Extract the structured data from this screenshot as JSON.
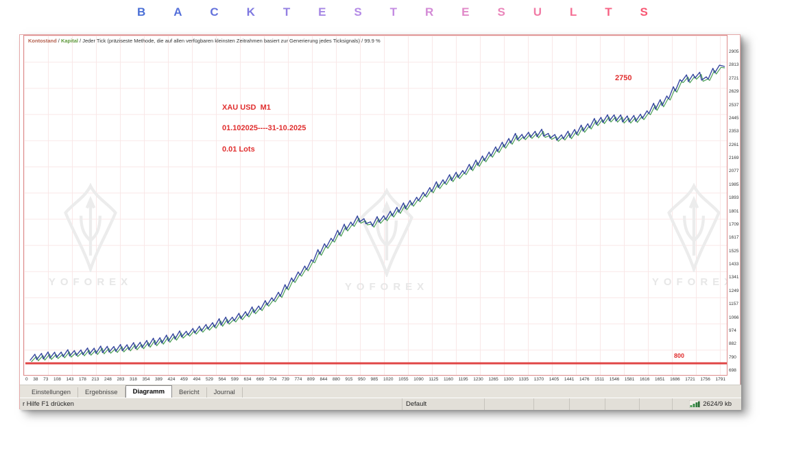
{
  "title": {
    "text": "BACKTEST RESULTS",
    "letters": [
      {
        "ch": "B",
        "color": "#4a6fd6"
      },
      {
        "ch": "A",
        "color": "#5570da"
      },
      {
        "ch": "C",
        "color": "#6472dc"
      },
      {
        "ch": "K",
        "color": "#7e78e0"
      },
      {
        "ch": "T",
        "color": "#9480e2"
      },
      {
        "ch": "E",
        "color": "#a586e4"
      },
      {
        "ch": "S",
        "color": "#b48ae6"
      },
      {
        "ch": "T",
        "color": "#c48ce2"
      },
      {
        "ch": "R",
        "color": "#d38ad6"
      },
      {
        "ch": "E",
        "color": "#e088c8"
      },
      {
        "ch": "S",
        "color": "#ea85ba"
      },
      {
        "ch": "U",
        "color": "#f17ca6"
      },
      {
        "ch": "L",
        "color": "#f57095"
      },
      {
        "ch": "T",
        "color": "#f76384"
      },
      {
        "ch": "S",
        "color": "#f85672"
      }
    ]
  },
  "window": {
    "legend": {
      "balance_label": "Kontostand",
      "equity_label": "Kapital",
      "separator": " / ",
      "description": "Jeder Tick (präziseste Methode, die auf allen verfügbaren kleinsten Zeitrahmen basiert zur Generierung jedes Ticksignals)",
      "quality": "99.9 %"
    },
    "annotations": {
      "symbol": "XAU USD  M1",
      "period": "01.102025----31-10.2025",
      "lots": "0.01 Lots",
      "high_label": "2750",
      "low_label": "800",
      "color": "#e02e2e"
    },
    "watermark": {
      "text": "YOFOREX"
    },
    "tabs": [
      {
        "label": "Einstellungen",
        "active": false
      },
      {
        "label": "Ergebnisse",
        "active": false
      },
      {
        "label": "Diagramm",
        "active": true
      },
      {
        "label": "Bericht",
        "active": false
      },
      {
        "label": "Journal",
        "active": false
      }
    ],
    "statusbar": {
      "help": "r Hilfe F1 drücken",
      "profile": "Default",
      "memory": "2624/9 kb"
    }
  },
  "chart_data": {
    "type": "line",
    "title": "Backtest equity curve XAU USD M1 01.10.2025-31.10.2025 0.01 Lots",
    "xlabel": "",
    "ylabel": "",
    "grid": true,
    "y_ticks": [
      2905,
      2813,
      2721,
      2629,
      2537,
      2445,
      2353,
      2261,
      2169,
      2077,
      1985,
      1893,
      1801,
      1709,
      1617,
      1525,
      1433,
      1341,
      1249,
      1157,
      1066,
      974,
      882,
      790,
      698
    ],
    "x_ticks": [
      0,
      38,
      73,
      108,
      143,
      178,
      213,
      248,
      283,
      318,
      354,
      389,
      424,
      459,
      494,
      529,
      564,
      599,
      634,
      669,
      704,
      739,
      774,
      809,
      844,
      880,
      915,
      950,
      985,
      1020,
      1055,
      1090,
      1125,
      1160,
      1195,
      1230,
      1265,
      1300,
      1335,
      1370,
      1405,
      1441,
      1476,
      1511,
      1546,
      1581,
      1616,
      1651,
      1686,
      1721,
      1756,
      1791
    ],
    "ylim": [
      698,
      2905
    ],
    "series": [
      {
        "name": "Kontostand",
        "color": "#36479f",
        "anchors": [
          [
            9,
            472
          ],
          [
            30,
            470
          ],
          [
            55,
            467
          ],
          [
            85,
            464
          ],
          [
            115,
            461
          ],
          [
            145,
            458
          ],
          [
            175,
            453
          ],
          [
            205,
            446
          ],
          [
            230,
            438
          ],
          [
            260,
            429
          ],
          [
            290,
            420
          ],
          [
            320,
            410
          ],
          [
            345,
            398
          ],
          [
            360,
            388
          ],
          [
            375,
            378
          ],
          [
            390,
            360
          ],
          [
            400,
            350
          ],
          [
            412,
            340
          ],
          [
            427,
            322
          ],
          [
            442,
            306
          ],
          [
            457,
            292
          ],
          [
            472,
            280
          ],
          [
            487,
            270
          ],
          [
            497,
            272
          ],
          [
            507,
            277
          ],
          [
            517,
            271
          ],
          [
            527,
            267
          ],
          [
            547,
            256
          ],
          [
            567,
            245
          ],
          [
            587,
            231
          ],
          [
            612,
            215
          ],
          [
            632,
            206
          ],
          [
            657,
            191
          ],
          [
            677,
            177
          ],
          [
            697,
            163
          ],
          [
            717,
            151
          ],
          [
            737,
            147
          ],
          [
            757,
            145
          ],
          [
            777,
            151
          ],
          [
            797,
            147
          ],
          [
            817,
            137
          ],
          [
            837,
            127
          ],
          [
            857,
            122
          ],
          [
            877,
            125
          ],
          [
            897,
            123
          ],
          [
            917,
            108
          ],
          [
            932,
            100
          ],
          [
            947,
            83
          ],
          [
            957,
            70
          ],
          [
            962,
            60
          ],
          [
            967,
            64
          ],
          [
            972,
            68
          ],
          [
            977,
            62
          ],
          [
            982,
            57
          ],
          [
            987,
            62
          ],
          [
            992,
            68
          ],
          [
            997,
            63
          ],
          [
            1002,
            57
          ],
          [
            1007,
            53
          ],
          [
            1012,
            50
          ],
          [
            1017,
            47
          ],
          [
            1022,
            45
          ]
        ]
      },
      {
        "name": "Kapital",
        "color": "#4a9e55"
      }
    ],
    "baseline": {
      "value": 800,
      "y": 478,
      "color": "#e04545"
    }
  }
}
